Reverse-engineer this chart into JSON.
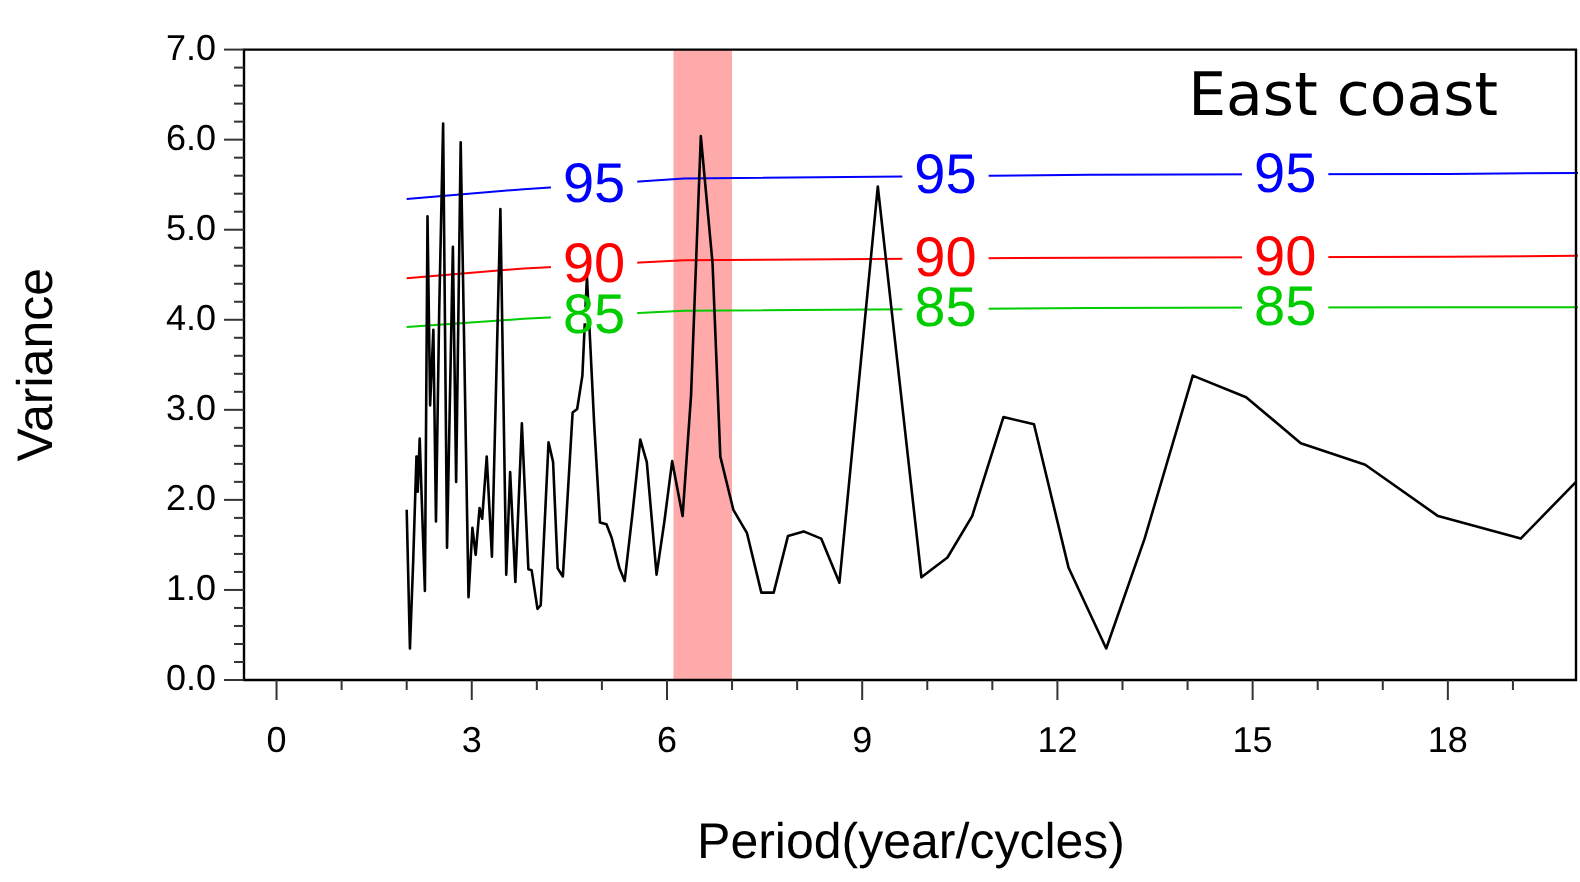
{
  "chart_data": {
    "type": "line",
    "title": "East coast",
    "xlabel": "Period(year/cycles)",
    "ylabel": "Variance",
    "xlim": [
      -0.5,
      20
    ],
    "ylim": [
      0,
      7
    ],
    "xticks": [
      0,
      {
        "value": 1,
        "label": null
      },
      {
        "value": 2,
        "label": null
      },
      3,
      {
        "value": 4,
        "label": null
      },
      {
        "value": 5,
        "label": null
      },
      6,
      {
        "value": 7,
        "label": null
      },
      {
        "value": 8,
        "label": null
      },
      9,
      {
        "value": 10,
        "label": null
      },
      {
        "value": 11,
        "label": null
      },
      12,
      {
        "value": 13,
        "label": null
      },
      {
        "value": 14,
        "label": null
      },
      15,
      {
        "value": 16,
        "label": null
      },
      {
        "value": 17,
        "label": null
      },
      18,
      {
        "value": 19,
        "label": null
      }
    ],
    "yticks": [
      {
        "value": 0,
        "label": "0.0"
      },
      {
        "value": 0.2,
        "label": null
      },
      {
        "value": 0.4,
        "label": null
      },
      {
        "value": 0.6,
        "label": null
      },
      {
        "value": 0.8,
        "label": null
      },
      {
        "value": 1,
        "label": "1.0"
      },
      {
        "value": 1.2,
        "label": null
      },
      {
        "value": 1.4,
        "label": null
      },
      {
        "value": 1.6,
        "label": null
      },
      {
        "value": 1.8,
        "label": null
      },
      {
        "value": 2,
        "label": "2.0"
      },
      {
        "value": 2.2,
        "label": null
      },
      {
        "value": 2.4,
        "label": null
      },
      {
        "value": 2.6,
        "label": null
      },
      {
        "value": 2.8,
        "label": null
      },
      {
        "value": 3,
        "label": "3.0"
      },
      {
        "value": 3.2,
        "label": null
      },
      {
        "value": 3.4,
        "label": null
      },
      {
        "value": 3.6,
        "label": null
      },
      {
        "value": 3.8,
        "label": null
      },
      {
        "value": 4,
        "label": "4.0"
      },
      {
        "value": 4.2,
        "label": null
      },
      {
        "value": 4.4,
        "label": null
      },
      {
        "value": 4.6,
        "label": null
      },
      {
        "value": 4.8,
        "label": null
      },
      {
        "value": 5,
        "label": "5.0"
      },
      {
        "value": 5.2,
        "label": null
      },
      {
        "value": 5.4,
        "label": null
      },
      {
        "value": 5.6,
        "label": null
      },
      {
        "value": 5.8,
        "label": null
      },
      {
        "value": 6,
        "label": "6.0"
      },
      {
        "value": 6.2,
        "label": null
      },
      {
        "value": 6.4,
        "label": null
      },
      {
        "value": 6.6,
        "label": null
      },
      {
        "value": 6.8,
        "label": null
      },
      {
        "value": 7,
        "label": "7.0"
      }
    ],
    "grid": false,
    "legend": false,
    "marker": "none",
    "bands": [
      {
        "axis": "x",
        "from": 6.1,
        "to": 7.0,
        "color": "#ffaaaa"
      }
    ],
    "series": [
      {
        "color": "#000000",
        "x": [
          2.0,
          2.05,
          2.1,
          2.15,
          2.17,
          2.2,
          2.25,
          2.28,
          2.32,
          2.36,
          2.41,
          2.45,
          2.5,
          2.56,
          2.62,
          2.71,
          2.76,
          2.83,
          2.95,
          3.01,
          3.06,
          3.12,
          3.16,
          3.23,
          3.31,
          3.44,
          3.53,
          3.59,
          3.67,
          3.77,
          3.87,
          3.92,
          4.01,
          4.06,
          4.18,
          4.25,
          4.32,
          4.4,
          4.55,
          4.62,
          4.7,
          4.77,
          4.88,
          4.97,
          5.07,
          5.15,
          5.27,
          5.35,
          5.47,
          5.59,
          5.69,
          5.84,
          5.96,
          6.08,
          6.24,
          6.37,
          6.52,
          6.7,
          6.82,
          7.02,
          7.23,
          7.45,
          7.64,
          7.86,
          8.1,
          8.37,
          8.65,
          9.24,
          9.91,
          10.31,
          10.69,
          11.17,
          11.64,
          12.17,
          12.75,
          13.34,
          14.08,
          14.9,
          15.74,
          16.73,
          17.85,
          19.12,
          19.97
        ],
        "values": [
          1.89,
          0.35,
          1.32,
          2.48,
          2.09,
          2.68,
          1.61,
          0.99,
          5.15,
          3.05,
          3.89,
          1.76,
          4.11,
          6.18,
          1.47,
          4.81,
          2.2,
          5.97,
          0.92,
          1.69,
          1.39,
          1.91,
          1.79,
          2.48,
          1.37,
          5.23,
          1.17,
          2.31,
          1.09,
          2.85,
          1.23,
          1.22,
          0.79,
          0.83,
          2.64,
          2.42,
          1.24,
          1.15,
          2.97,
          3.01,
          3.38,
          4.48,
          2.86,
          1.75,
          1.73,
          1.58,
          1.24,
          1.1,
          1.85,
          2.67,
          2.42,
          1.17,
          1.76,
          2.43,
          1.82,
          3.16,
          6.04,
          4.63,
          2.48,
          1.89,
          1.63,
          0.97,
          0.97,
          1.6,
          1.65,
          1.57,
          1.08,
          5.48,
          1.14,
          1.36,
          1.82,
          2.92,
          2.84,
          1.25,
          0.35,
          1.57,
          3.38,
          3.14,
          2.63,
          2.39,
          1.82,
          1.57,
          2.2
        ]
      },
      {
        "name": "95",
        "color": "#0000ff",
        "x": [
          2,
          3.8,
          6.26,
          12.5,
          18,
          20
        ],
        "values": [
          5.34,
          5.45,
          5.57,
          5.61,
          5.62,
          5.63
        ]
      },
      {
        "name": "90",
        "color": "#ff0000",
        "x": [
          2,
          3.8,
          6.26,
          12.5,
          18,
          20
        ],
        "values": [
          4.46,
          4.57,
          4.66,
          4.69,
          4.7,
          4.71
        ]
      },
      {
        "name": "85",
        "color": "#00cc00",
        "x": [
          2,
          3.8,
          6.26,
          12.5,
          18,
          20
        ],
        "values": [
          3.92,
          4.01,
          4.1,
          4.13,
          4.14,
          4.14
        ]
      }
    ]
  }
}
